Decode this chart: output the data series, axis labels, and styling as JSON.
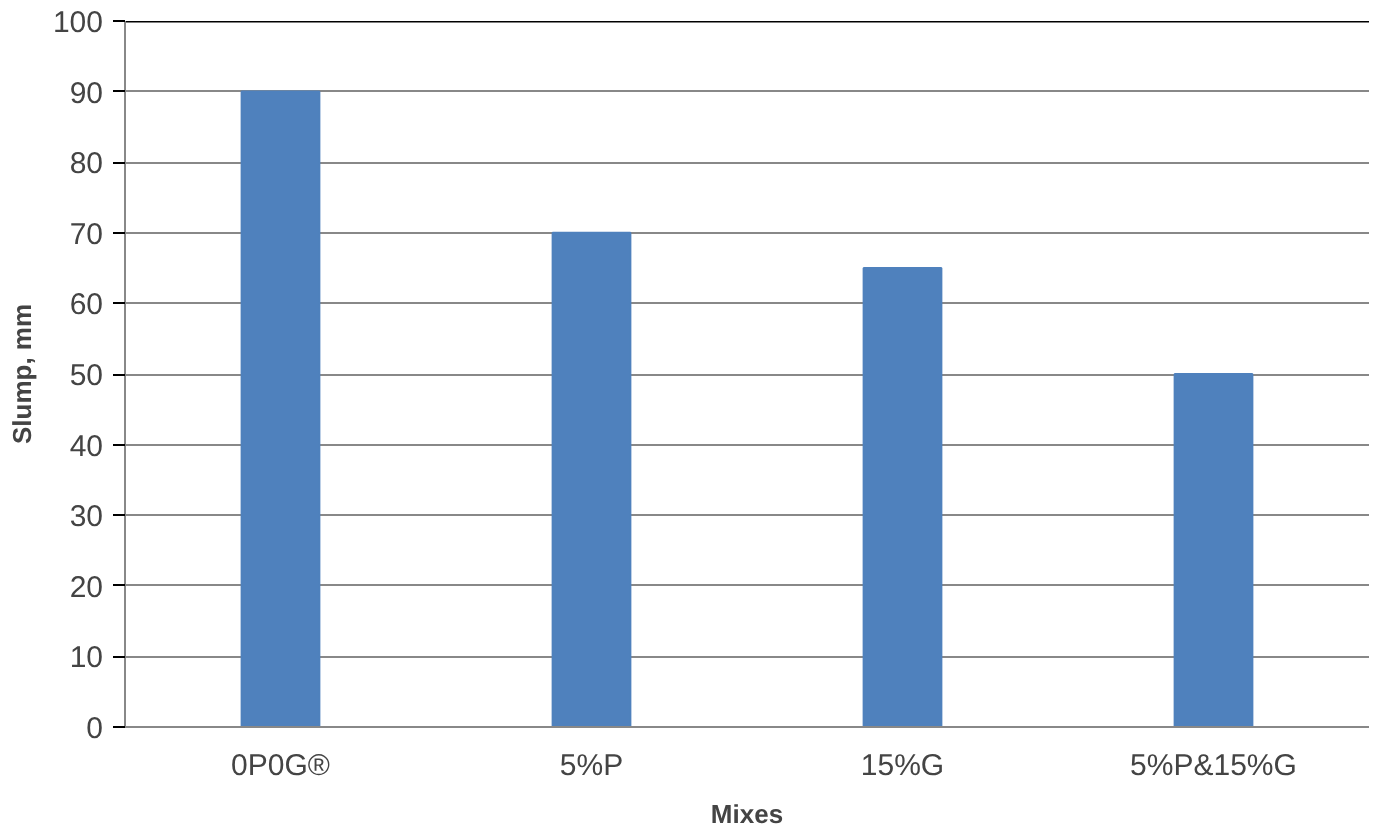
{
  "chart_data": {
    "type": "bar",
    "xlabel": "Mixes",
    "ylabel": "Slump, mm",
    "categories": [
      "0P0G®",
      "5%P",
      "15%G",
      "5%P&15%G"
    ],
    "values": [
      90,
      70,
      65,
      50
    ],
    "color": "#4f81bd",
    "ylim": [
      0,
      100
    ],
    "yticks": [
      0,
      10,
      20,
      30,
      40,
      50,
      60,
      70,
      80,
      90,
      100
    ],
    "grid": "y"
  }
}
